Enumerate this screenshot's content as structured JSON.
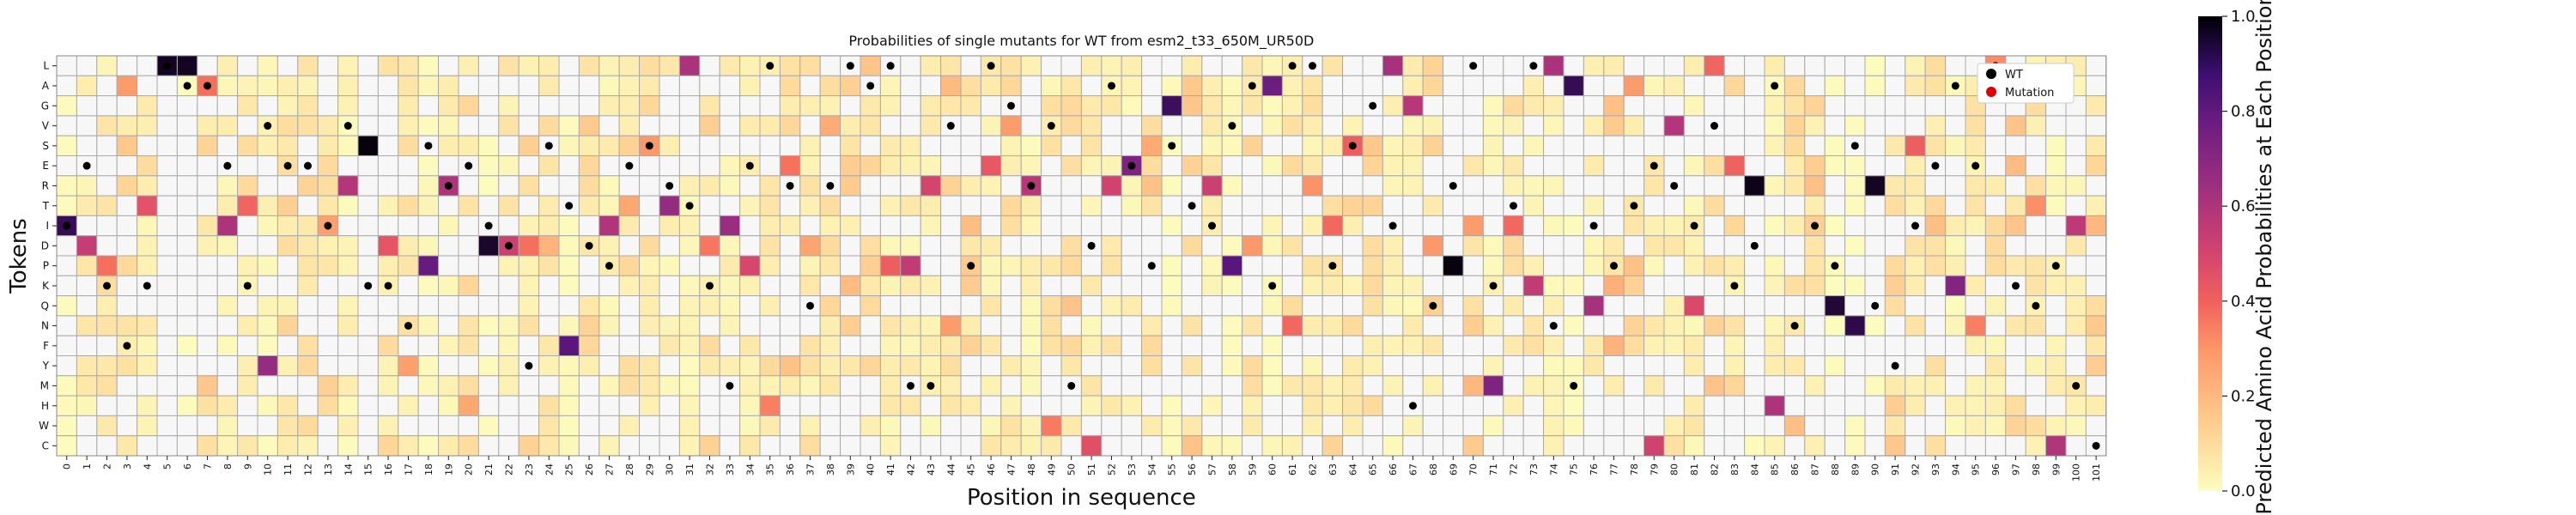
{
  "chart_data": {
    "type": "heatmap",
    "title": "Probabilities of single mutants for WT from esm2_t33_650M_UR50D",
    "xlabel": "Position in sequence",
    "ylabel": "Tokens",
    "colorbar_label": "Predicted Amino Acid Probabilities at Each Position",
    "colorbar_ticks": [
      "0.0",
      "0.2",
      "0.4",
      "0.6",
      "0.8",
      "1.0"
    ],
    "vmin": 0.0,
    "vmax": 1.0,
    "colormap": "magma_r",
    "tokens": [
      "L",
      "A",
      "G",
      "V",
      "S",
      "E",
      "R",
      "T",
      "I",
      "D",
      "P",
      "K",
      "Q",
      "N",
      "F",
      "Y",
      "M",
      "H",
      "W",
      "C"
    ],
    "positions": [
      "0",
      "1",
      "2",
      "3",
      "4",
      "5",
      "6",
      "7",
      "8",
      "9",
      "10",
      "11",
      "12",
      "13",
      "14",
      "15",
      "16",
      "17",
      "18",
      "19",
      "20",
      "21",
      "22",
      "23",
      "24",
      "25",
      "26",
      "27",
      "28",
      "29",
      "30",
      "31",
      "32",
      "33",
      "34",
      "35",
      "36",
      "37",
      "38",
      "39",
      "40",
      "41",
      "42",
      "43",
      "44",
      "45",
      "46",
      "47",
      "48",
      "49",
      "50",
      "51",
      "52",
      "53",
      "54",
      "55",
      "56",
      "57",
      "58",
      "59",
      "60",
      "61",
      "62",
      "63",
      "64",
      "65",
      "66",
      "67",
      "68",
      "69",
      "70",
      "71",
      "72",
      "73",
      "74",
      "75",
      "76",
      "77",
      "78",
      "79",
      "80",
      "81",
      "82",
      "83",
      "84",
      "85",
      "86",
      "87",
      "88",
      "89",
      "90",
      "91",
      "92",
      "93",
      "94",
      "95",
      "96",
      "97",
      "98",
      "99",
      "100",
      "101"
    ],
    "wt_sequence": [
      "I",
      "E",
      "K",
      "F",
      "K",
      "L",
      "A",
      "A",
      "E",
      "K",
      "V",
      "E",
      "E",
      "I",
      "V",
      "K",
      "K",
      "N",
      "S",
      "R",
      "E",
      "I",
      "D",
      "Y",
      "S",
      "T",
      "D",
      "P",
      "E",
      "S",
      "R",
      "T",
      "K",
      "M",
      "E",
      "L",
      "R",
      "Q",
      "R",
      "L",
      "A",
      "L",
      "M",
      "M",
      "V",
      "P",
      "L",
      "G",
      "R",
      "V",
      "M",
      "D",
      "A",
      "E",
      "P",
      "S",
      "T",
      "I",
      "V",
      "A",
      "K",
      "L",
      "L",
      "P",
      "S",
      "G",
      "I",
      "H",
      "Q",
      "R",
      "L",
      "K",
      "T",
      "L",
      "N",
      "M",
      "I",
      "P",
      "T",
      "E",
      "R",
      "I",
      "V",
      "K",
      "D",
      "A",
      "N",
      "I",
      "P",
      "S",
      "Q",
      "Y",
      "I",
      "E",
      "A",
      "E",
      "L",
      "K",
      "Q",
      "P",
      "M",
      "C"
    ],
    "top_predictions": [
      "I",
      "D",
      "P",
      "A",
      "T",
      "L",
      "L",
      "A",
      "I",
      "T",
      "Y",
      "D",
      "R",
      "I",
      "R",
      "S",
      "D",
      "Y",
      "P",
      "R",
      "H",
      "D",
      "D",
      "D",
      "D",
      "F",
      "T",
      "I",
      "T",
      "S",
      "T",
      "L",
      "D",
      "I",
      "P",
      "H",
      "E",
      "D",
      "V",
      "R",
      "P",
      "P",
      "P",
      "R",
      "N",
      "D",
      "E",
      "V",
      "R",
      "W",
      "Q",
      "C",
      "R",
      "E",
      "E",
      "G",
      "L",
      "R",
      "P",
      "D",
      "A",
      "N",
      "R",
      "I",
      "S",
      "K",
      "L",
      "G",
      "D",
      "P",
      "Q",
      "M",
      "I",
      "K",
      "L",
      "A",
      "Q",
      "L",
      "A",
      "C",
      "V",
      "Q",
      "L",
      "E",
      "R",
      "H",
      "V",
      "C",
      "Q",
      "N",
      "R",
      "C",
      "S",
      "I",
      "K",
      "N",
      "L",
      "N",
      "T",
      "C",
      "I",
      "S"
    ],
    "top_probs": [
      0.92,
      0.58,
      0.38,
      0.27,
      0.47,
      0.97,
      0.97,
      0.38,
      0.65,
      0.41,
      0.72,
      0.1,
      0.13,
      0.26,
      0.63,
      0.99,
      0.46,
      0.26,
      0.83,
      0.65,
      0.24,
      0.96,
      0.56,
      0.38,
      0.21,
      0.86,
      0.06,
      0.64,
      0.24,
      0.28,
      0.72,
      0.66,
      0.36,
      0.71,
      0.52,
      0.34,
      0.37,
      0.25,
      0.23,
      0.15,
      0.14,
      0.43,
      0.59,
      0.53,
      0.27,
      0.07,
      0.45,
      0.27,
      0.62,
      0.35,
      0.17,
      0.48,
      0.54,
      0.78,
      0.1,
      0.91,
      0.05,
      0.56,
      0.86,
      0.28,
      0.82,
      0.4,
      0.29,
      0.4,
      0.43,
      0.11,
      0.67,
      0.62,
      0.28,
      0.99,
      0.09,
      0.78,
      0.4,
      0.59,
      0.66,
      0.92,
      0.67,
      0.05,
      0.27,
      0.54,
      0.63,
      0.51,
      0.41,
      0.42,
      0.98,
      0.65,
      0.13,
      0.04,
      0.95,
      0.93,
      0.97,
      0.16,
      0.43,
      0.18,
      0.77,
      0.34,
      0.31,
      0.07,
      0.3,
      0.64,
      0.6,
      0.06
    ],
    "legend": [
      "WT",
      "Mutation"
    ],
    "legend_position": "top-right",
    "colors": {
      "wt_marker": "#000000",
      "mutation_marker": "#e00000",
      "grid": "#aaaaaa"
    }
  }
}
